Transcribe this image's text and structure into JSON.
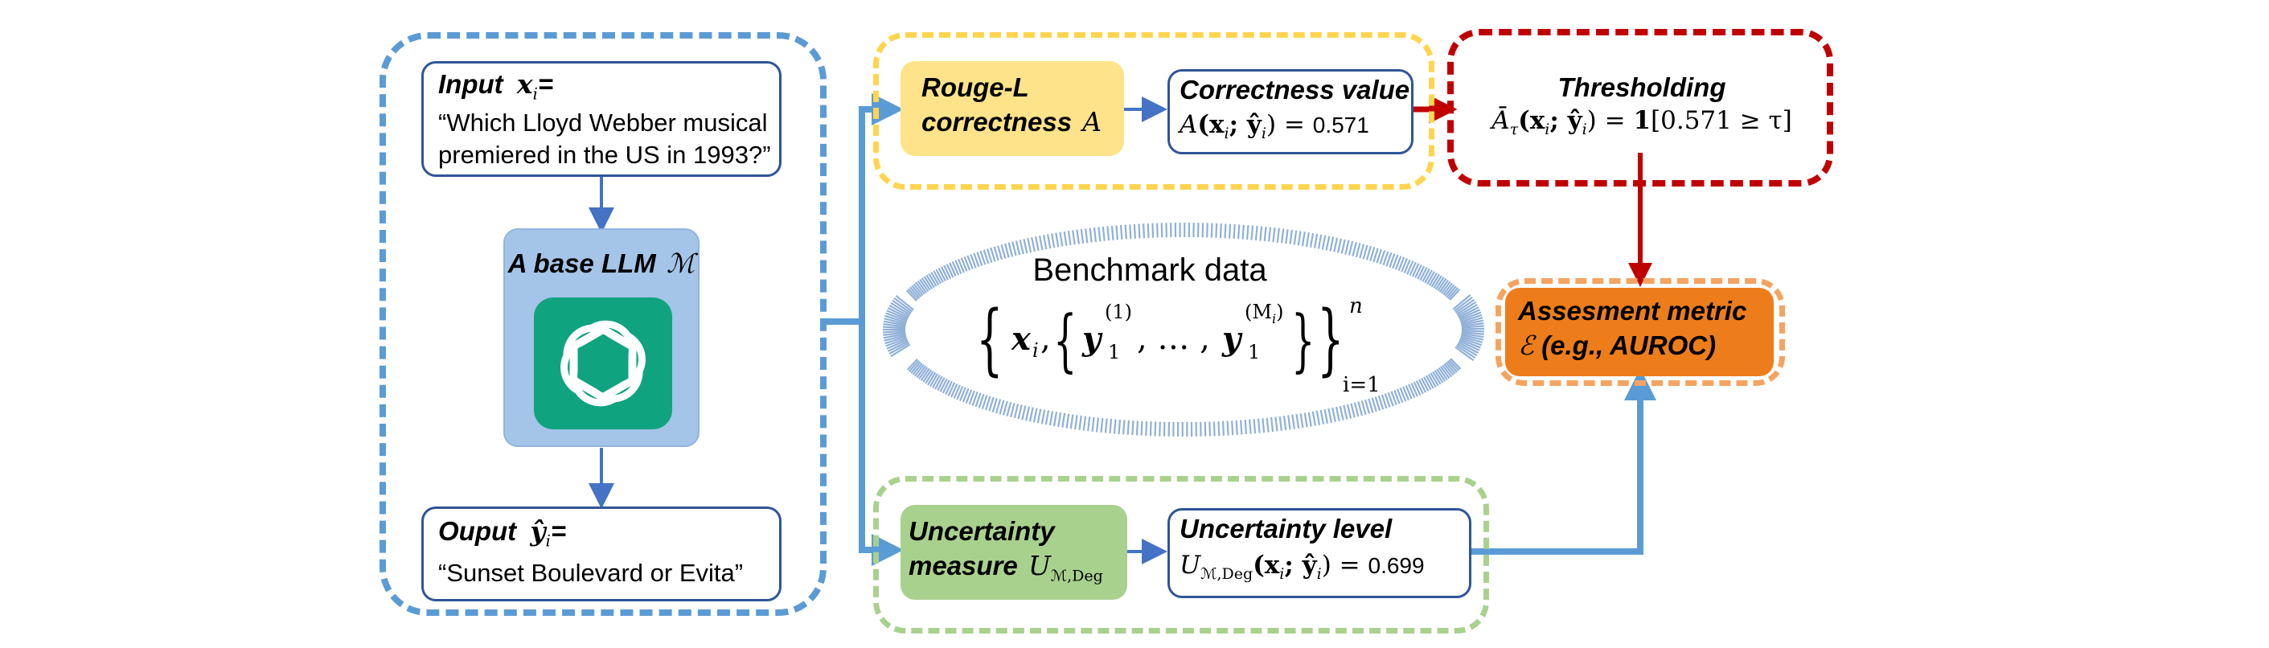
{
  "input": {
    "label": "Input",
    "var": "x",
    "sub": "i",
    "eq": "=",
    "line1": "“Which Lloyd Webber musical",
    "line2": "premiered in the US in 1993?”"
  },
  "llm": {
    "label": "A base LLM",
    "symbol": "ℳ",
    "icon": "openai-logo-icon",
    "color": "#10a37f"
  },
  "output": {
    "label": "Ouput",
    "var": "ŷ",
    "sub": "i",
    "eq": "=",
    "text": "“Sunset Boulevard or Evita”"
  },
  "rouge": {
    "line1": "Rouge-L",
    "line2": "correctness",
    "symbol": "A"
  },
  "correctness": {
    "title": "Correctness value",
    "fn": "A",
    "args": "(x",
    "args_sub": "i",
    "args_mid": "; ŷ",
    "args_sub2": "i",
    "args_end": ") =",
    "value": "0.571"
  },
  "thresholding": {
    "title": "Thresholding",
    "fn": "Ā",
    "fn_sub": "τ",
    "args": "(x",
    "args_sub": "i",
    "args_mid": "; ŷ",
    "args_sub2": "i",
    "args_end": ") =",
    "indicator": "1",
    "condition": "[0.571 ≥ τ]"
  },
  "benchmark": {
    "title": "Benchmark data",
    "x": "x",
    "x_sub": "i",
    "y": "y",
    "y_sub": "1",
    "y_sup_first": "(1)",
    "ellipsis": ", … ,",
    "y_sup_last": "(M",
    "y_sup_last_sub": "i",
    "y_sup_last_close": ")",
    "upper": "n",
    "lower": "i=1"
  },
  "assessment": {
    "line1": "Assesment metric",
    "symbol": "ℰ",
    "line2": " (e.g., AUROC)"
  },
  "uncertainty_measure": {
    "line1": "Uncertainty",
    "line2": "measure",
    "symbol": "U",
    "sub": "ℳ,Deg"
  },
  "uncertainty_level": {
    "title": "Uncertainty level",
    "fn": "U",
    "fn_sub": "ℳ,Deg",
    "args": "(x",
    "args_sub": "i",
    "args_mid": "; ŷ",
    "args_sub2": "i",
    "args_end": ") =",
    "value": "0.699"
  },
  "colors": {
    "blue": "#5b9bd5",
    "dark_blue": "#2f5597",
    "yellow": "#ffe38a",
    "red": "#c00000",
    "green": "#a9d18e",
    "orange": "#ed7d1b",
    "llm_box": "#a4c4e8"
  }
}
